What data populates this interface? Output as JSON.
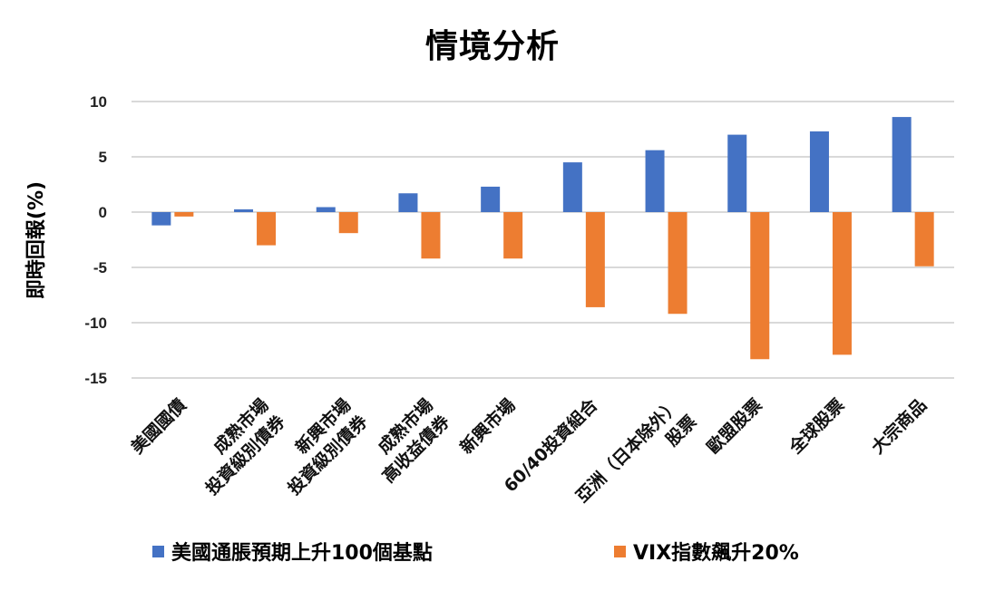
{
  "chart_data": {
    "type": "bar",
    "title": "情境分析",
    "xlabel": "",
    "ylabel": "即時回報(%)",
    "ylim": [
      -15,
      10
    ],
    "yticks": [
      10,
      5,
      0,
      -5,
      -10,
      -15
    ],
    "grid": true,
    "legend_position": "bottom",
    "categories": [
      [
        "美國國債"
      ],
      [
        "成熟市場",
        "投資級別債券"
      ],
      [
        "新興市場",
        "投資級別債券"
      ],
      [
        "成熟市場",
        "高收益債券"
      ],
      [
        "新興市場"
      ],
      [
        "60/40投資組合"
      ],
      [
        "亞洲（日本除外）",
        "股票"
      ],
      [
        "歐盟股票"
      ],
      [
        "全球股票"
      ],
      [
        "大宗商品"
      ]
    ],
    "series": [
      {
        "name": "美國通脹預期上升100個基點",
        "color": "#4472C4",
        "values": [
          -1.2,
          0.25,
          0.45,
          1.7,
          2.3,
          4.5,
          5.6,
          7.0,
          7.3,
          8.6
        ]
      },
      {
        "name": "VIX指數飆升20%",
        "color": "#ED7D31",
        "values": [
          -0.4,
          -3.0,
          -1.9,
          -4.2,
          -4.2,
          -8.6,
          -9.2,
          -13.3,
          -12.9,
          -4.9
        ]
      }
    ]
  }
}
